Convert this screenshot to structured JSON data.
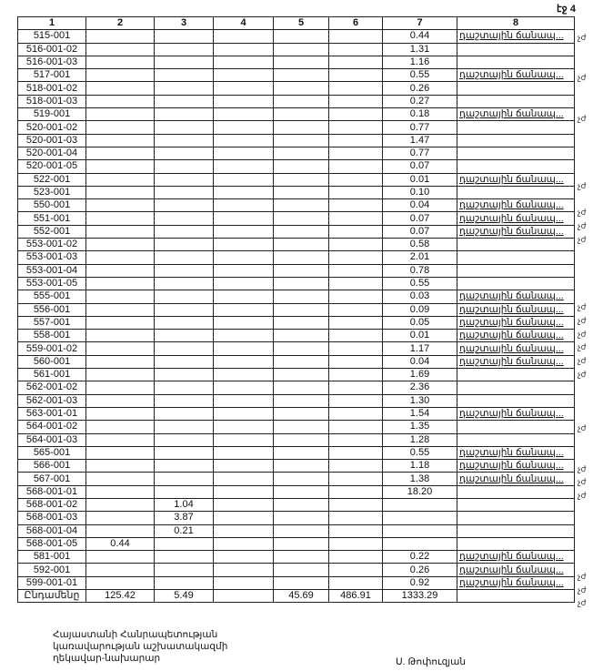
{
  "page_label": "էջ 4",
  "columns": [
    "1",
    "2",
    "3",
    "4",
    "5",
    "6",
    "7",
    "8"
  ],
  "road_label": "դաշտային ճանապ...",
  "side_mark": "չժ",
  "rows": [
    {
      "id": "515-001",
      "c2": "",
      "c3": "",
      "c7": "0.44",
      "road": true
    },
    {
      "id": "516-001-02",
      "c2": "",
      "c3": "",
      "c7": "1.31",
      "road": false
    },
    {
      "id": "516-001-03",
      "c2": "",
      "c3": "",
      "c7": "1.16",
      "road": false
    },
    {
      "id": "517-001",
      "c2": "",
      "c3": "",
      "c7": "0.55",
      "road": true
    },
    {
      "id": "518-001-02",
      "c2": "",
      "c3": "",
      "c7": "0.26",
      "road": false
    },
    {
      "id": "518-001-03",
      "c2": "",
      "c3": "",
      "c7": "0.27",
      "road": false
    },
    {
      "id": "519-001",
      "c2": "",
      "c3": "",
      "c7": "0.18",
      "road": true
    },
    {
      "id": "520-001-02",
      "c2": "",
      "c3": "",
      "c7": "0.77",
      "road": false
    },
    {
      "id": "520-001-03",
      "c2": "",
      "c3": "",
      "c7": "1.47",
      "road": false
    },
    {
      "id": "520-001-04",
      "c2": "",
      "c3": "",
      "c7": "0.77",
      "road": false
    },
    {
      "id": "520-001-05",
      "c2": "",
      "c3": "",
      "c7": "0.07",
      "road": false
    },
    {
      "id": "522-001",
      "c2": "",
      "c3": "",
      "c7": "0.01",
      "road": true
    },
    {
      "id": "523-001",
      "c2": "",
      "c3": "",
      "c7": "0.10",
      "road": false
    },
    {
      "id": "550-001",
      "c2": "",
      "c3": "",
      "c7": "0.04",
      "road": true
    },
    {
      "id": "551-001",
      "c2": "",
      "c3": "",
      "c7": "0.07",
      "road": true
    },
    {
      "id": "552-001",
      "c2": "",
      "c3": "",
      "c7": "0.07",
      "road": true
    },
    {
      "id": "553-001-02",
      "c2": "",
      "c3": "",
      "c7": "0.58",
      "road": false
    },
    {
      "id": "553-001-03",
      "c2": "",
      "c3": "",
      "c7": "2.01",
      "road": false
    },
    {
      "id": "553-001-04",
      "c2": "",
      "c3": "",
      "c7": "0.78",
      "road": false
    },
    {
      "id": "553-001-05",
      "c2": "",
      "c3": "",
      "c7": "0.55",
      "road": false
    },
    {
      "id": "555-001",
      "c2": "",
      "c3": "",
      "c7": "0.03",
      "road": true
    },
    {
      "id": "556-001",
      "c2": "",
      "c3": "",
      "c7": "0.09",
      "road": true
    },
    {
      "id": "557-001",
      "c2": "",
      "c3": "",
      "c7": "0.05",
      "road": true
    },
    {
      "id": "558-001",
      "c2": "",
      "c3": "",
      "c7": "0.01",
      "road": true
    },
    {
      "id": "559-001-02",
      "c2": "",
      "c3": "",
      "c7": "1.17",
      "road": true
    },
    {
      "id": "560-001",
      "c2": "",
      "c3": "",
      "c7": "0.04",
      "road": true
    },
    {
      "id": "561-001",
      "c2": "",
      "c3": "",
      "c7": "1.69",
      "road": false
    },
    {
      "id": "562-001-02",
      "c2": "",
      "c3": "",
      "c7": "2.36",
      "road": false
    },
    {
      "id": "562-001-03",
      "c2": "",
      "c3": "",
      "c7": "1.30",
      "road": false
    },
    {
      "id": "563-001-01",
      "c2": "",
      "c3": "",
      "c7": "1.54",
      "road": true
    },
    {
      "id": "564-001-02",
      "c2": "",
      "c3": "",
      "c7": "1.35",
      "road": false
    },
    {
      "id": "564-001-03",
      "c2": "",
      "c3": "",
      "c7": "1.28",
      "road": false
    },
    {
      "id": "565-001",
      "c2": "",
      "c3": "",
      "c7": "0.55",
      "road": true
    },
    {
      "id": "566-001",
      "c2": "",
      "c3": "",
      "c7": "1.18",
      "road": true
    },
    {
      "id": "567-001",
      "c2": "",
      "c3": "",
      "c7": "1.38",
      "road": true
    },
    {
      "id": "568-001-01",
      "c2": "",
      "c3": "",
      "c7": "18.20",
      "road": false
    },
    {
      "id": "568-001-02",
      "c2": "",
      "c3": "1.04",
      "c7": "",
      "road": false
    },
    {
      "id": "568-001-03",
      "c2": "",
      "c3": "3.87",
      "c7": "",
      "road": false
    },
    {
      "id": "568-001-04",
      "c2": "",
      "c3": "0.21",
      "c7": "",
      "road": false
    },
    {
      "id": "568-001-05",
      "c2": "0.44",
      "c3": "",
      "c7": "",
      "road": false
    },
    {
      "id": "581-001",
      "c2": "",
      "c3": "",
      "c7": "0.22",
      "road": true
    },
    {
      "id": "592-001",
      "c2": "",
      "c3": "",
      "c7": "0.26",
      "road": true
    },
    {
      "id": "599-001-01",
      "c2": "",
      "c3": "",
      "c7": "0.92",
      "road": true
    }
  ],
  "total": {
    "label": "Ընդամենը",
    "c2": "125.42",
    "c3": "5.49",
    "c4": "",
    "c5": "45.69",
    "c6": "486.91",
    "c7": "1333.29"
  },
  "footer": {
    "title_lines": [
      "Հայաստանի Հանրապետության",
      "կառավարության աշխատակազմի",
      "ղեկավար-նախարար"
    ],
    "signatory": "Ս. Թոփուզյան"
  }
}
